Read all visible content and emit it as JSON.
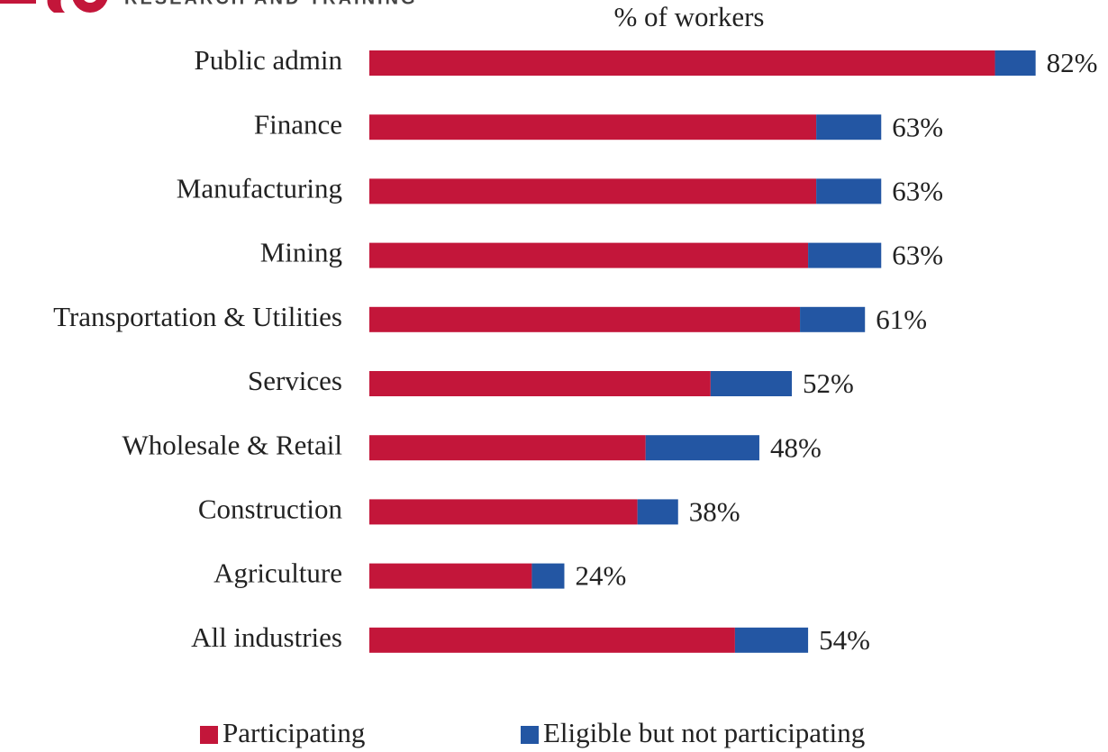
{
  "chart_data": {
    "type": "stacked-bar-horizontal",
    "logo_text": "RESEARCH AND TRAINING",
    "axis_label": "% of workers",
    "categories": [
      "Public admin",
      "Finance",
      "Manufacturing",
      "Mining",
      "Transportation & Utilities",
      "Services",
      "Wholesale & Retail",
      "Construction",
      "Agriculture",
      "All industries"
    ],
    "series": [
      {
        "name": "Participating",
        "color": "#c3163a",
        "values": [
          77,
          55,
          55,
          54,
          53,
          42,
          34,
          33,
          20,
          45
        ]
      },
      {
        "name": "Eligible but not participating",
        "color": "#2356a3",
        "values": [
          5,
          8,
          8,
          9,
          8,
          10,
          14,
          5,
          4,
          9
        ]
      }
    ],
    "totals": [
      82,
      63,
      63,
      63,
      61,
      52,
      48,
      38,
      24,
      54
    ],
    "total_labels": [
      "82%",
      "63%",
      "63%",
      "63%",
      "61%",
      "52%",
      "48%",
      "38%",
      "24%",
      "54%"
    ],
    "legend": "bottom"
  }
}
